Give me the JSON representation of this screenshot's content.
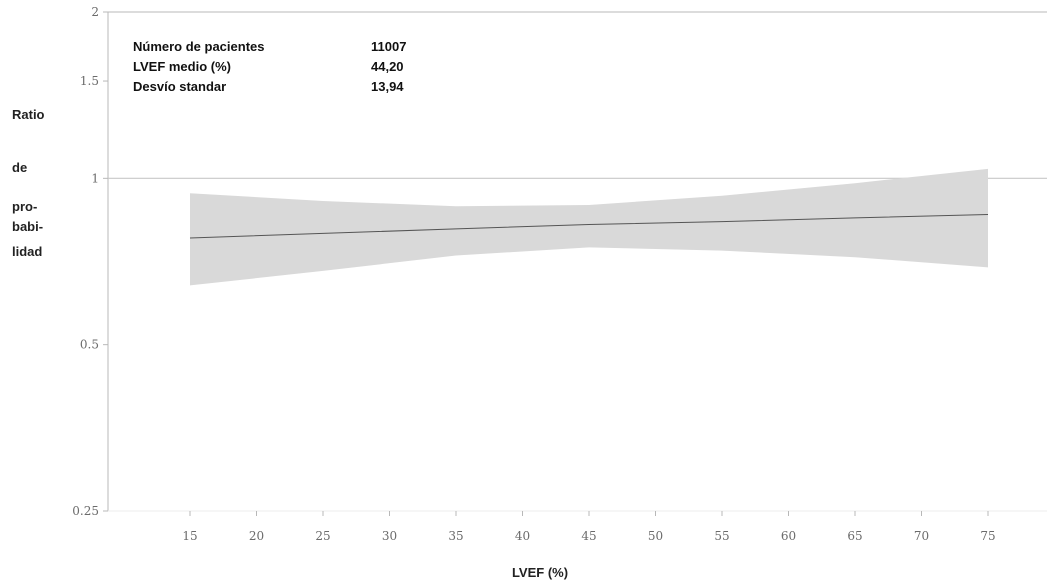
{
  "chart_data": {
    "type": "line",
    "xlabel": "LVEF (%)",
    "ylabel_lines": [
      "Ratio",
      "de",
      "pro-",
      "babi-",
      "lidad"
    ],
    "y_scale": "log",
    "ylim": [
      0.25,
      2
    ],
    "xlim": [
      10,
      76
    ],
    "x_ticks": [
      15,
      20,
      25,
      30,
      35,
      40,
      45,
      50,
      55,
      60,
      65,
      70,
      75
    ],
    "y_ticks": [
      {
        "value": 0.25,
        "label": "0.25"
      },
      {
        "value": 0.5,
        "label": "0.5"
      },
      {
        "value": 1,
        "label": "1"
      },
      {
        "value": 1.5,
        "label": "1.5"
      },
      {
        "value": 2,
        "label": "2"
      }
    ],
    "reference_line": 1,
    "series": [
      {
        "x": [
          15,
          25,
          35,
          45,
          55,
          65,
          75
        ],
        "estimate": [
          0.78,
          0.795,
          0.81,
          0.825,
          0.835,
          0.848,
          0.86
        ],
        "lower": [
          0.64,
          0.68,
          0.725,
          0.75,
          0.74,
          0.72,
          0.69
        ],
        "upper": [
          0.94,
          0.91,
          0.89,
          0.895,
          0.93,
          0.98,
          1.04
        ]
      }
    ],
    "stats": [
      {
        "label": "Número de pacientes",
        "value": "11007"
      },
      {
        "label": "LVEF medio (%)",
        "value": "44,20"
      },
      {
        "label": "Desvío standar",
        "value": "13,94"
      }
    ],
    "colors": {
      "band": "#d9d9d9",
      "line": "#555555",
      "axis": "#b8b8b8",
      "reference": "#c8c8c8"
    }
  }
}
